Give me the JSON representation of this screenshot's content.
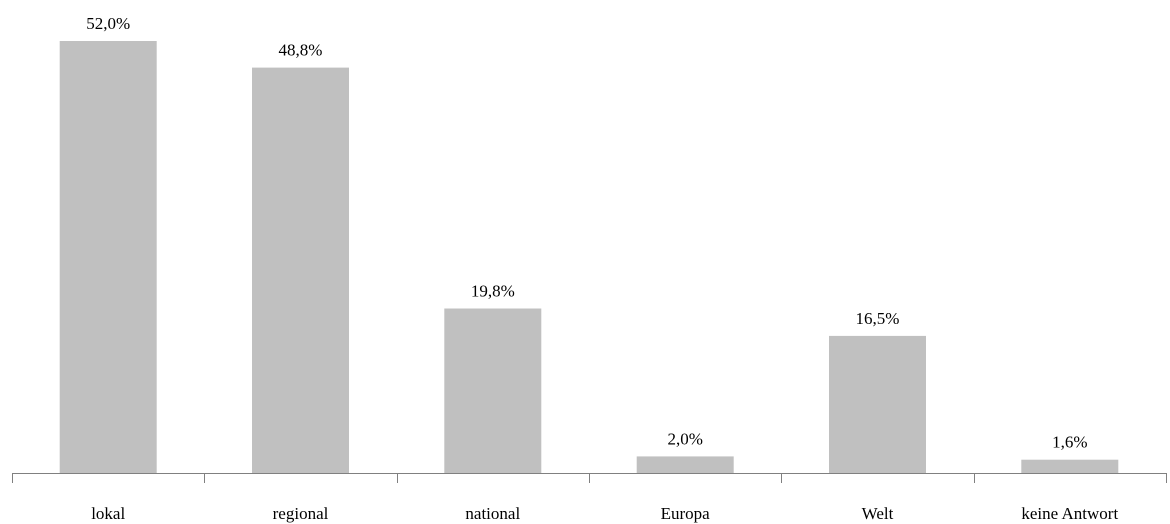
{
  "chart_data": {
    "type": "bar",
    "categories": [
      "lokal",
      "regional",
      "national",
      "Europa",
      "Welt",
      "keine Antwort"
    ],
    "values": [
      52.0,
      48.8,
      19.8,
      2.0,
      16.5,
      1.6
    ],
    "value_labels": [
      "52,0%",
      "48,8%",
      "19,8%",
      "2,0%",
      "16,5%",
      "1,6%"
    ],
    "ylim": [
      0,
      52.0
    ],
    "grid": false,
    "legend": "none",
    "title": "",
    "xlabel": "",
    "ylabel": "",
    "colors": {
      "bar": "#c0c0c0",
      "axis": "#808080",
      "text": "#000000"
    }
  }
}
